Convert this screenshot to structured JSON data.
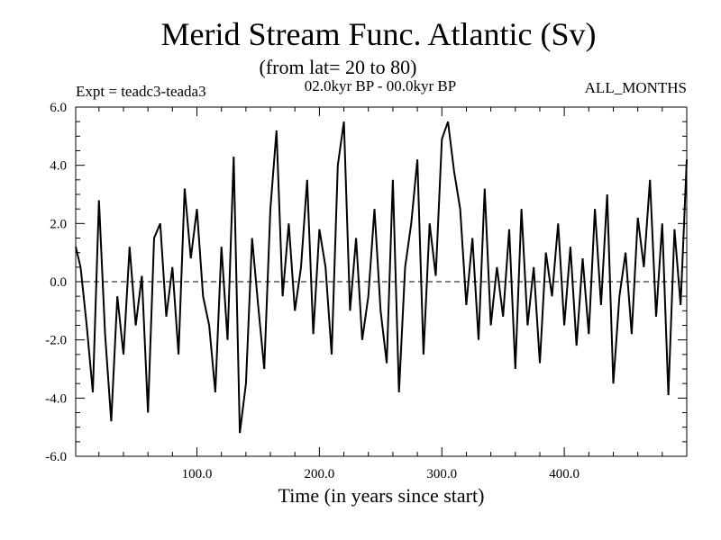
{
  "chart_data": {
    "type": "line",
    "title": "Merid Stream Func. Atlantic (Sv)",
    "subtitle": "(from lat= 20 to 80)",
    "experiment": "Expt = teadc3-teada3",
    "period": "02.0kyr BP - 00.0kyr BP",
    "months": "ALL_MONTHS",
    "xlabel": "Time (in years since start)",
    "ylabel": "",
    "xlim": [
      1,
      500
    ],
    "ylim": [
      -6,
      6
    ],
    "xticks": [
      100,
      200,
      300,
      400
    ],
    "xtick_labels": [
      "100.0",
      "200.0",
      "300.0",
      "400.0"
    ],
    "yticks": [
      6,
      4,
      2,
      0,
      -2,
      -4,
      -6
    ],
    "ytick_labels": [
      "6.0",
      "4.0",
      "2.0",
      "0.0",
      "-2.0",
      "-4.0",
      "-6.0"
    ],
    "zero_line": "dashed",
    "grid": false,
    "series": [
      {
        "name": "Merid Stream Func. Atlantic",
        "x": [
          1,
          5,
          10,
          15,
          20,
          25,
          30,
          35,
          40,
          45,
          50,
          55,
          60,
          65,
          70,
          75,
          80,
          85,
          90,
          95,
          100,
          105,
          110,
          115,
          120,
          125,
          130,
          135,
          140,
          145,
          150,
          155,
          160,
          165,
          170,
          175,
          180,
          185,
          190,
          195,
          200,
          205,
          210,
          215,
          220,
          225,
          230,
          235,
          240,
          245,
          250,
          255,
          260,
          265,
          270,
          275,
          280,
          285,
          290,
          295,
          300,
          305,
          310,
          315,
          320,
          325,
          330,
          335,
          340,
          345,
          350,
          355,
          360,
          365,
          370,
          375,
          380,
          385,
          390,
          395,
          400,
          405,
          410,
          415,
          420,
          425,
          430,
          435,
          440,
          445,
          450,
          455,
          460,
          465,
          470,
          475,
          480,
          485,
          490,
          495,
          500
        ],
        "values": [
          1.2,
          0.5,
          -1.5,
          -3.8,
          2.8,
          -1.8,
          -4.8,
          -0.5,
          -2.5,
          1.2,
          -1.5,
          0.2,
          -4.5,
          1.5,
          2.0,
          -1.2,
          0.5,
          -2.5,
          3.2,
          0.8,
          2.5,
          -0.5,
          -1.5,
          -3.8,
          1.2,
          -2.0,
          4.3,
          -5.2,
          -3.5,
          1.5,
          -0.8,
          -3.0,
          2.5,
          5.2,
          -0.5,
          2.0,
          -1.0,
          0.5,
          3.5,
          -1.8,
          1.8,
          0.5,
          -2.5,
          4.0,
          5.5,
          -1.0,
          1.5,
          -2.0,
          -0.5,
          2.5,
          -1.0,
          -2.8,
          3.5,
          -3.8,
          0.5,
          2.0,
          4.2,
          -2.5,
          2.0,
          0.2,
          4.9,
          5.5,
          3.8,
          2.5,
          -0.8,
          1.5,
          -2.0,
          3.2,
          -1.5,
          0.5,
          -1.2,
          1.8,
          -3.0,
          2.5,
          -1.5,
          0.5,
          -2.8,
          1.0,
          -0.5,
          2.0,
          -1.5,
          1.2,
          -2.2,
          0.8,
          -1.8,
          2.5,
          -0.8,
          3.0,
          -3.5,
          -0.5,
          1.0,
          -1.8,
          2.2,
          0.5,
          3.5,
          -1.2,
          2.0,
          -3.9,
          1.8,
          -0.8,
          4.2
        ]
      }
    ]
  }
}
